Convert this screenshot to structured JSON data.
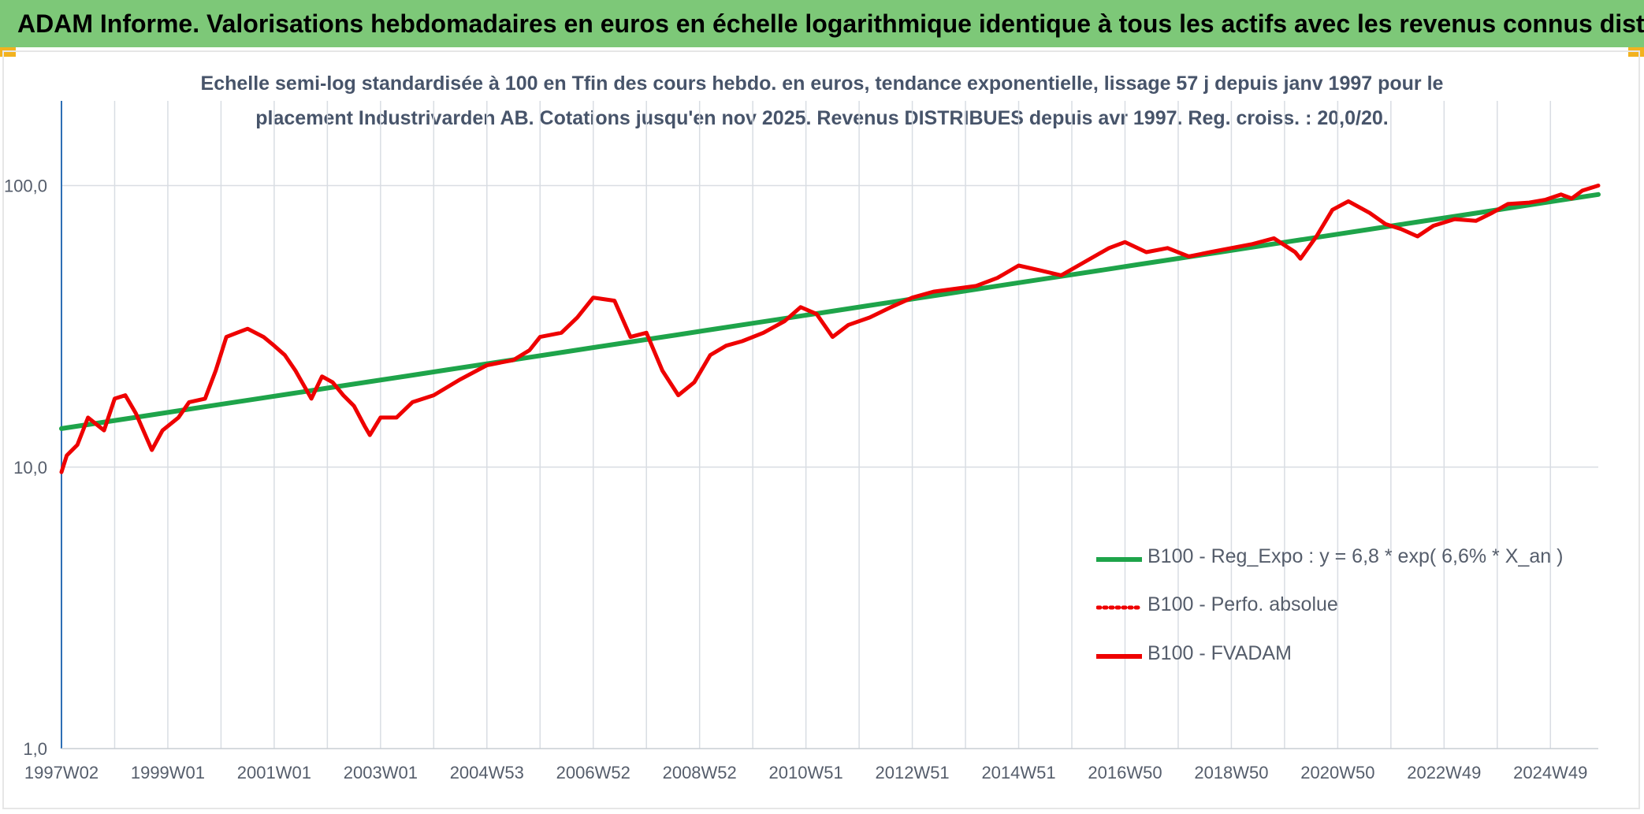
{
  "header": {
    "title": "ADAM Informe. Valorisations hebdomadaires en euros en échelle logarithmique identique à tous les actifs avec les revenus connus distribués"
  },
  "colors": {
    "header_bg": "#7dc878",
    "corner_accent": "#f2b21f",
    "trend_green": "#1ea44a",
    "series_red": "#ee0000",
    "grid": "#d9dde3",
    "axis_text": "#555d6b"
  },
  "chart_data": {
    "type": "line",
    "title_line1": "Echelle semi-log standardisée à 100 en Tfin des cours hebdo. en euros, tendance exponentielle, lissage 57 j depuis janv 1997 pour le",
    "title_line2": "placement Industrivarden AB. Cotations jusqu'en nov 2025. Revenus DISTRIBUES depuis avr 1997. Reg. croiss. : 20,0/20.",
    "yscale": "log",
    "ylim": [
      1,
      200
    ],
    "xlim": [
      1997.0,
      2025.9
    ],
    "grid": true,
    "legend_position": "right",
    "y_ticks": [
      {
        "value": 100,
        "label": "100,0"
      },
      {
        "value": 10,
        "label": "10,0"
      },
      {
        "value": 1,
        "label": "1,0"
      }
    ],
    "x_ticks": [
      {
        "value": 1997.0,
        "label": "1997W02"
      },
      {
        "value": 1999.0,
        "label": "1999W01"
      },
      {
        "value": 2001.0,
        "label": "2001W01"
      },
      {
        "value": 2003.0,
        "label": "2003W01"
      },
      {
        "value": 2005.0,
        "label": "2004W53"
      },
      {
        "value": 2007.0,
        "label": "2006W52"
      },
      {
        "value": 2009.0,
        "label": "2008W52"
      },
      {
        "value": 2011.0,
        "label": "2010W51"
      },
      {
        "value": 2013.0,
        "label": "2012W51"
      },
      {
        "value": 2015.0,
        "label": "2014W51"
      },
      {
        "value": 2017.0,
        "label": "2016W50"
      },
      {
        "value": 2019.0,
        "label": "2018W50"
      },
      {
        "value": 2021.0,
        "label": "2020W50"
      },
      {
        "value": 2023.0,
        "label": "2022W49"
      },
      {
        "value": 2025.0,
        "label": "2024W49"
      }
    ],
    "series": [
      {
        "name": "B100 - Reg_Expo : y = 6,8 * exp( 6,6% *  X_an )",
        "style": "solid-green",
        "x": [
          1997.0,
          2025.9
        ],
        "y": [
          13.7,
          93.0
        ]
      },
      {
        "name": "B100 - Perfo. absolue",
        "style": "dotted-red",
        "x": [],
        "y": []
      },
      {
        "name": "B100 - FVADAM",
        "style": "solid-red",
        "x": [
          1997.0,
          1997.1,
          1997.3,
          1997.5,
          1997.8,
          1998.0,
          1998.2,
          1998.4,
          1998.7,
          1998.9,
          1999.2,
          1999.4,
          1999.7,
          1999.9,
          2000.1,
          2000.3,
          2000.5,
          2000.8,
          2001.0,
          2001.2,
          2001.4,
          2001.7,
          2001.9,
          2002.1,
          2002.3,
          2002.5,
          2002.7,
          2002.8,
          2003.0,
          2003.3,
          2003.6,
          2004.0,
          2004.5,
          2005.0,
          2005.5,
          2005.8,
          2006.0,
          2006.4,
          2006.7,
          2007.0,
          2007.4,
          2007.7,
          2008.0,
          2008.3,
          2008.6,
          2008.9,
          2009.2,
          2009.5,
          2009.8,
          2010.2,
          2010.6,
          2010.9,
          2011.2,
          2011.5,
          2011.8,
          2012.2,
          2012.6,
          2013.0,
          2013.4,
          2013.8,
          2014.2,
          2014.6,
          2015.0,
          2015.4,
          2015.8,
          2016.2,
          2016.7,
          2017.0,
          2017.4,
          2017.8,
          2018.2,
          2018.6,
          2019.0,
          2019.4,
          2019.8,
          2020.2,
          2020.3,
          2020.6,
          2020.9,
          2021.2,
          2021.6,
          2021.9,
          2022.2,
          2022.5,
          2022.8,
          2023.2,
          2023.6,
          2023.9,
          2024.2,
          2024.6,
          2024.9,
          2025.2,
          2025.4,
          2025.6,
          2025.9
        ],
        "y": [
          9.6,
          11.0,
          12.0,
          15.0,
          13.5,
          17.5,
          18.0,
          15.5,
          11.5,
          13.5,
          15.0,
          17.0,
          17.5,
          22.0,
          29.0,
          30.0,
          31.0,
          29.0,
          27.0,
          25.0,
          22.0,
          17.5,
          21.0,
          20.0,
          18.0,
          16.5,
          14.0,
          13.0,
          15.0,
          15.0,
          17.0,
          18.0,
          20.5,
          23.0,
          24.0,
          26.0,
          29.0,
          30.0,
          34.0,
          40.0,
          39.0,
          29.0,
          30.0,
          22.0,
          18.0,
          20.0,
          25.0,
          27.0,
          28.0,
          30.0,
          33.0,
          37.0,
          35.0,
          29.0,
          32.0,
          34.0,
          37.0,
          40.0,
          42.0,
          43.0,
          44.0,
          47.0,
          52.0,
          50.0,
          48.0,
          53.0,
          60.0,
          63.0,
          58.0,
          60.0,
          56.0,
          58.0,
          60.0,
          62.0,
          65.0,
          58.0,
          55.0,
          66.0,
          82.0,
          88.0,
          80.0,
          73.0,
          70.0,
          66.0,
          72.0,
          76.0,
          75.0,
          80.0,
          86.0,
          87.0,
          89.0,
          93.0,
          90.0,
          96.0,
          100.0
        ]
      }
    ]
  }
}
